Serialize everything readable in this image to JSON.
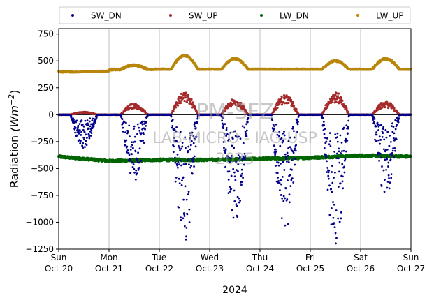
{
  "chart_data": {
    "type": "scatter",
    "xlabel": "2024",
    "ylabel": "Radiation",
    "ylabel_unit": "(Wm",
    "ylabel_exp": "−2",
    "ylabel_close": ")",
    "ylim": [
      -1250,
      800
    ],
    "yticks": [
      800,
      750,
      500,
      250,
      0,
      -250,
      -500,
      -750,
      -1000,
      -1250
    ],
    "ytick_labels": [
      "",
      "750",
      "500",
      "250",
      "0",
      "−250",
      "−500",
      "−750",
      "−1000",
      "−1250"
    ],
    "x_start": "2024-10-20",
    "x_end": "2024-10-27",
    "xticks": [
      {
        "day": "Sun",
        "date": "Oct-20"
      },
      {
        "day": "Mon",
        "date": "Oct-21"
      },
      {
        "day": "Tue",
        "date": "Oct-22"
      },
      {
        "day": "Wed",
        "date": "Oct-23"
      },
      {
        "day": "Thu",
        "date": "Oct-24"
      },
      {
        "day": "Fri",
        "date": "Oct-25"
      },
      {
        "day": "Sat",
        "date": "Oct-26"
      },
      {
        "day": "Sun",
        "date": "Oct-27"
      }
    ],
    "grid_x": true,
    "grid_y": false,
    "legend_position": "top",
    "series": [
      {
        "name": "SW_DN",
        "color": "#00008b",
        "night": 0,
        "daily_min": [
          -300,
          -600,
          -1170,
          -1000,
          -1030,
          -1160,
          -720
        ]
      },
      {
        "name": "SW_UP",
        "color": "#a52a2a",
        "night": 0,
        "daily_max": [
          25,
          100,
          200,
          140,
          180,
          200,
          120
        ]
      },
      {
        "name": "LW_DN",
        "color": "#006400",
        "daily_values": [
          -390,
          -430,
          -420,
          -420,
          -410,
          -400,
          -380,
          -390
        ]
      },
      {
        "name": "LW_UP",
        "color": "#b8860b",
        "daily_values": [
          390,
          460,
          550,
          520,
          420,
          500,
          520,
          400
        ]
      }
    ],
    "watermark": [
      "PM-SFZ",
      "LAB-MICRO - IAG-USP",
      "2025"
    ]
  }
}
